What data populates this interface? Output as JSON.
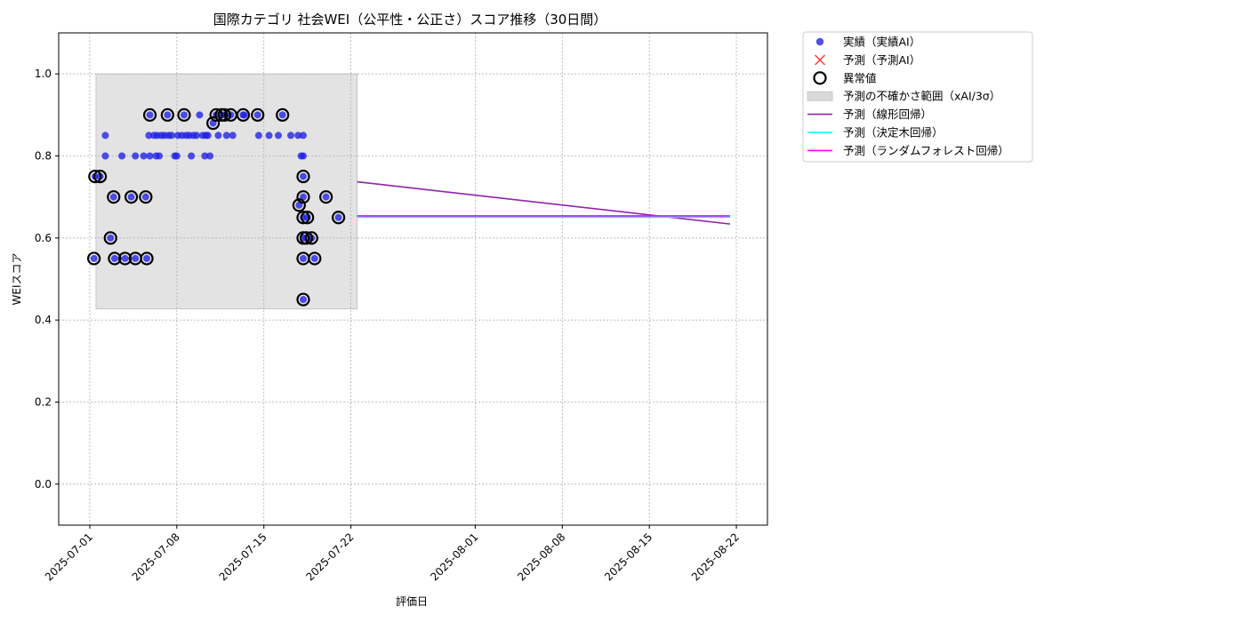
{
  "chart_data": {
    "type": "scatter",
    "title": "国際カテゴリ 社会WEI（公平性・公正さ）スコア推移（30日間）",
    "xlabel": "評価日",
    "ylabel": "WEIスコア",
    "xlim": [
      "2025-06-28T12:00",
      "2025-08-24T12:00"
    ],
    "ylim": [
      -0.1,
      1.1
    ],
    "yticks": [
      0.0,
      0.2,
      0.4,
      0.6,
      0.8,
      1.0
    ],
    "ytick_labels": [
      "0.0",
      "0.2",
      "0.4",
      "0.6",
      "0.8",
      "1.0"
    ],
    "xticks": [
      "2025-07-01",
      "2025-07-08",
      "2025-07-15",
      "2025-07-22",
      "2025-08-01",
      "2025-08-08",
      "2025-08-15",
      "2025-08-22"
    ],
    "grid": true,
    "legend_placement": "outside-upper-right",
    "colors": {
      "actual": "#1f1fe6",
      "predicted": "#ff2a2a",
      "anomaly": "#000000",
      "uncertainty": "#d9d9d9",
      "linear": "#8e24aa",
      "tree": "#00ffff",
      "forest": "#ff00ff"
    },
    "legend": [
      {
        "key": "actual",
        "label": "実績（実績AI）"
      },
      {
        "key": "predicted",
        "label": "予測（予測AI）"
      },
      {
        "key": "anomaly",
        "label": "異常値"
      },
      {
        "key": "uncertainty",
        "label": "予測の不確かさ範囲（xAI/3σ）"
      },
      {
        "key": "linear",
        "label": "予測（線形回帰）"
      },
      {
        "key": "tree",
        "label": "予測（決定木回帰）"
      },
      {
        "key": "forest",
        "label": "予測（ランダムフォレスト回帰）"
      }
    ],
    "uncertainty_band": {
      "x": [
        "2025-07-01T12:00",
        "2025-07-22T12:00"
      ],
      "y": [
        0.427,
        1.0
      ]
    },
    "series": [
      {
        "key": "actual",
        "points": [
          [
            "2025-07-01T08:00",
            0.55
          ],
          [
            "2025-07-01T10:00",
            0.75
          ],
          [
            "2025-07-01T20:00",
            0.75
          ],
          [
            "2025-07-02T06:00",
            0.8
          ],
          [
            "2025-07-02T06:00",
            0.85
          ],
          [
            "2025-07-02T16:00",
            0.6
          ],
          [
            "2025-07-02T22:00",
            0.7
          ],
          [
            "2025-07-03T00:00",
            0.55
          ],
          [
            "2025-07-03T14:00",
            0.8
          ],
          [
            "2025-07-03T20:00",
            0.55
          ],
          [
            "2025-07-04T08:00",
            0.7
          ],
          [
            "2025-07-04T16:00",
            0.55
          ],
          [
            "2025-07-04T16:00",
            0.8
          ],
          [
            "2025-07-05T08:00",
            0.8
          ],
          [
            "2025-07-05T12:00",
            0.7
          ],
          [
            "2025-07-05T14:00",
            0.55
          ],
          [
            "2025-07-05T18:00",
            0.85
          ],
          [
            "2025-07-05T20:00",
            0.8
          ],
          [
            "2025-07-05T20:00",
            0.9
          ],
          [
            "2025-07-06T04:00",
            0.85
          ],
          [
            "2025-07-06T08:00",
            0.8
          ],
          [
            "2025-07-06T10:00",
            0.85
          ],
          [
            "2025-07-06T14:00",
            0.8
          ],
          [
            "2025-07-06T18:00",
            0.85
          ],
          [
            "2025-07-07T00:00",
            0.85
          ],
          [
            "2025-07-07T06:00",
            0.9
          ],
          [
            "2025-07-07T08:00",
            0.85
          ],
          [
            "2025-07-07T14:00",
            0.85
          ],
          [
            "2025-07-07T20:00",
            0.8
          ],
          [
            "2025-07-08T00:00",
            0.8
          ],
          [
            "2025-07-08T02:00",
            0.85
          ],
          [
            "2025-07-08T10:00",
            0.85
          ],
          [
            "2025-07-08T14:00",
            0.9
          ],
          [
            "2025-07-08T18:00",
            0.85
          ],
          [
            "2025-07-09T00:00",
            0.85
          ],
          [
            "2025-07-09T04:00",
            0.8
          ],
          [
            "2025-07-09T08:00",
            0.85
          ],
          [
            "2025-07-09T14:00",
            0.85
          ],
          [
            "2025-07-09T20:00",
            0.9
          ],
          [
            "2025-07-10T02:00",
            0.85
          ],
          [
            "2025-07-10T06:00",
            0.8
          ],
          [
            "2025-07-10T08:00",
            0.85
          ],
          [
            "2025-07-10T12:00",
            0.85
          ],
          [
            "2025-07-10T16:00",
            0.8
          ],
          [
            "2025-07-10T22:00",
            0.88
          ],
          [
            "2025-07-11T04:00",
            0.9
          ],
          [
            "2025-07-11T08:00",
            0.85
          ],
          [
            "2025-07-11T14:00",
            0.9
          ],
          [
            "2025-07-11T20:00",
            0.9
          ],
          [
            "2025-07-12T00:00",
            0.85
          ],
          [
            "2025-07-12T08:00",
            0.9
          ],
          [
            "2025-07-12T12:00",
            0.85
          ],
          [
            "2025-07-13T08:00",
            0.9
          ],
          [
            "2025-07-13T10:00",
            0.9
          ],
          [
            "2025-07-14T12:00",
            0.9
          ],
          [
            "2025-07-14T14:00",
            0.85
          ],
          [
            "2025-07-15T10:00",
            0.85
          ],
          [
            "2025-07-16T04:00",
            0.85
          ],
          [
            "2025-07-16T12:00",
            0.9
          ],
          [
            "2025-07-17T04:00",
            0.85
          ],
          [
            "2025-07-17T18:00",
            0.85
          ],
          [
            "2025-07-17T20:00",
            0.68
          ],
          [
            "2025-07-18T00:00",
            0.8
          ],
          [
            "2025-07-18T04:00",
            0.85
          ],
          [
            "2025-07-18T04:00",
            0.8
          ],
          [
            "2025-07-18T04:00",
            0.75
          ],
          [
            "2025-07-18T04:00",
            0.7
          ],
          [
            "2025-07-18T04:00",
            0.65
          ],
          [
            "2025-07-18T04:00",
            0.6
          ],
          [
            "2025-07-18T04:00",
            0.55
          ],
          [
            "2025-07-18T04:00",
            0.45
          ],
          [
            "2025-07-18T10:00",
            0.6
          ],
          [
            "2025-07-18T12:00",
            0.65
          ],
          [
            "2025-07-18T20:00",
            0.6
          ],
          [
            "2025-07-19T02:00",
            0.55
          ],
          [
            "2025-07-20T00:00",
            0.7
          ],
          [
            "2025-07-21T00:00",
            0.65
          ]
        ]
      },
      {
        "key": "anomaly",
        "points": [
          [
            "2025-07-01T08:00",
            0.55
          ],
          [
            "2025-07-01T10:00",
            0.75
          ],
          [
            "2025-07-01T20:00",
            0.75
          ],
          [
            "2025-07-02T16:00",
            0.6
          ],
          [
            "2025-07-02T22:00",
            0.7
          ],
          [
            "2025-07-03T00:00",
            0.55
          ],
          [
            "2025-07-03T20:00",
            0.55
          ],
          [
            "2025-07-04T08:00",
            0.7
          ],
          [
            "2025-07-04T16:00",
            0.55
          ],
          [
            "2025-07-05T12:00",
            0.7
          ],
          [
            "2025-07-05T14:00",
            0.55
          ],
          [
            "2025-07-05T20:00",
            0.9
          ],
          [
            "2025-07-07T06:00",
            0.9
          ],
          [
            "2025-07-08T14:00",
            0.9
          ],
          [
            "2025-07-10T22:00",
            0.88
          ],
          [
            "2025-07-11T04:00",
            0.9
          ],
          [
            "2025-07-11T14:00",
            0.9
          ],
          [
            "2025-07-11T20:00",
            0.9
          ],
          [
            "2025-07-12T08:00",
            0.9
          ],
          [
            "2025-07-13T08:00",
            0.9
          ],
          [
            "2025-07-14T12:00",
            0.9
          ],
          [
            "2025-07-16T12:00",
            0.9
          ],
          [
            "2025-07-17T20:00",
            0.68
          ],
          [
            "2025-07-18T04:00",
            0.75
          ],
          [
            "2025-07-18T04:00",
            0.7
          ],
          [
            "2025-07-18T04:00",
            0.65
          ],
          [
            "2025-07-18T04:00",
            0.6
          ],
          [
            "2025-07-18T04:00",
            0.55
          ],
          [
            "2025-07-18T04:00",
            0.45
          ],
          [
            "2025-07-18T10:00",
            0.6
          ],
          [
            "2025-07-18T12:00",
            0.65
          ],
          [
            "2025-07-18T20:00",
            0.6
          ],
          [
            "2025-07-19T02:00",
            0.55
          ],
          [
            "2025-07-20T00:00",
            0.7
          ],
          [
            "2025-07-21T00:00",
            0.65
          ]
        ]
      },
      {
        "key": "linear",
        "points": [
          [
            "2025-07-22T12:00",
            0.737
          ],
          [
            "2025-08-21T12:00",
            0.634
          ]
        ]
      },
      {
        "key": "tree",
        "points": [
          [
            "2025-07-22T12:00",
            0.651
          ],
          [
            "2025-08-21T12:00",
            0.651
          ]
        ]
      },
      {
        "key": "forest",
        "points": [
          [
            "2025-07-22T12:00",
            0.654
          ],
          [
            "2025-08-21T12:00",
            0.654
          ]
        ]
      }
    ]
  }
}
